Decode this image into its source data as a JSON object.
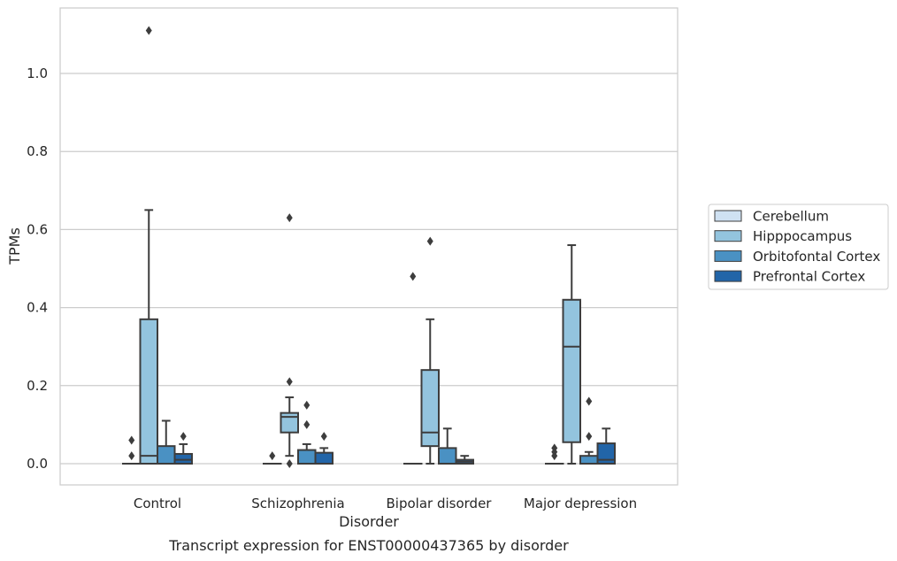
{
  "chart_data": {
    "type": "boxplot",
    "title": "",
    "caption": "Transcript expression for ENST00000437365 by disorder",
    "xlabel": "Disorder",
    "ylabel": "TPMs",
    "ylim": [
      -0.055,
      1.17
    ],
    "yticks": [
      0.0,
      0.2,
      0.4,
      0.6,
      0.8,
      1.0
    ],
    "ytick_labels": [
      "0.0",
      "0.2",
      "0.4",
      "0.6",
      "0.8",
      "1.0"
    ],
    "grid": "horizontal",
    "legend_position": "right",
    "categories": [
      "Control",
      "Schizophrenia",
      "Bipolar disorder",
      "Major depression"
    ],
    "series": [
      {
        "name": "Cerebellum",
        "color": "#cfe1f2",
        "boxes": [
          {
            "q1": 0,
            "median": 0,
            "q3": 0,
            "whisker_low": 0,
            "whisker_high": 0,
            "outliers": [
              0.02,
              0.06
            ]
          },
          {
            "q1": 0,
            "median": 0,
            "q3": 0,
            "whisker_low": 0,
            "whisker_high": 0,
            "outliers": [
              0.02
            ]
          },
          {
            "q1": 0,
            "median": 0,
            "q3": 0,
            "whisker_low": 0,
            "whisker_high": 0,
            "outliers": [
              0.48
            ]
          },
          {
            "q1": 0,
            "median": 0,
            "q3": 0,
            "whisker_low": 0,
            "whisker_high": 0,
            "outliers": [
              0.02,
              0.03,
              0.04
            ]
          }
        ]
      },
      {
        "name": "Hipppocampus",
        "color": "#93c4de",
        "boxes": [
          {
            "q1": 0,
            "median": 0.02,
            "q3": 0.37,
            "whisker_low": 0,
            "whisker_high": 0.65,
            "outliers": [
              1.11
            ]
          },
          {
            "q1": 0.08,
            "median": 0.12,
            "q3": 0.13,
            "whisker_low": 0.02,
            "whisker_high": 0.17,
            "outliers": [
              0,
              0.21,
              0.63
            ]
          },
          {
            "q1": 0.045,
            "median": 0.08,
            "q3": 0.24,
            "whisker_low": 0,
            "whisker_high": 0.37,
            "outliers": [
              0.57
            ]
          },
          {
            "q1": 0.055,
            "median": 0.3,
            "q3": 0.42,
            "whisker_low": 0,
            "whisker_high": 0.56,
            "outliers": []
          }
        ]
      },
      {
        "name": "Orbitofontal Cortex",
        "color": "#4a91c3",
        "boxes": [
          {
            "q1": 0,
            "median": 0,
            "q3": 0.045,
            "whisker_low": 0,
            "whisker_high": 0.11,
            "outliers": []
          },
          {
            "q1": 0,
            "median": 0,
            "q3": 0.035,
            "whisker_low": 0,
            "whisker_high": 0.05,
            "outliers": [
              0.1,
              0.15
            ]
          },
          {
            "q1": 0,
            "median": 0,
            "q3": 0.04,
            "whisker_low": 0,
            "whisker_high": 0.09,
            "outliers": []
          },
          {
            "q1": 0,
            "median": 0,
            "q3": 0.02,
            "whisker_low": 0,
            "whisker_high": 0.03,
            "outliers": [
              0.07,
              0.16
            ]
          }
        ]
      },
      {
        "name": "Prefrontal Cortex",
        "color": "#2265a8",
        "boxes": [
          {
            "q1": 0,
            "median": 0.01,
            "q3": 0.025,
            "whisker_low": 0,
            "whisker_high": 0.05,
            "outliers": [
              0.07
            ]
          },
          {
            "q1": 0,
            "median": 0,
            "q3": 0.028,
            "whisker_low": 0,
            "whisker_high": 0.04,
            "outliers": [
              0.07
            ]
          },
          {
            "q1": 0,
            "median": 0.005,
            "q3": 0.01,
            "whisker_low": 0,
            "whisker_high": 0.02,
            "outliers": []
          },
          {
            "q1": 0,
            "median": 0.01,
            "q3": 0.052,
            "whisker_low": 0,
            "whisker_high": 0.09,
            "outliers": []
          }
        ]
      }
    ]
  }
}
